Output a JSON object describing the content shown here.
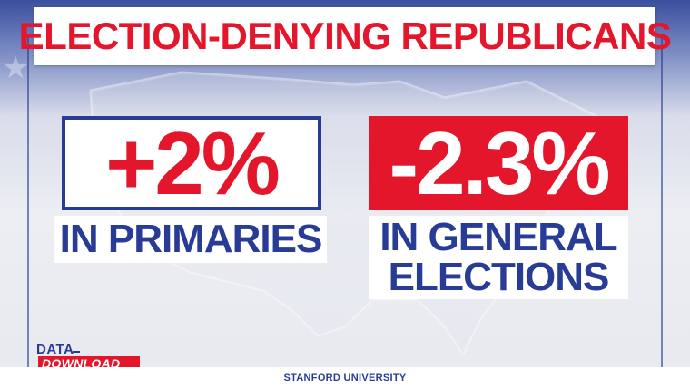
{
  "title": "ELECTION-DENYING REPUBLICANS",
  "stats": [
    {
      "value": "+2%",
      "label_lines": [
        "IN PRIMARIES"
      ]
    },
    {
      "value": "-2.3%",
      "label_lines": [
        "IN GENERAL",
        "ELECTIONS"
      ]
    }
  ],
  "logo": {
    "top": "DATA",
    "bottom": "DOWNLOAD"
  },
  "source": "STANFORD UNIVERSITY",
  "colors": {
    "red": "#e4162b",
    "blue": "#283c95",
    "white": "#ffffff"
  },
  "icons": {
    "background_map": "us-map-icon",
    "star": "star-icon"
  }
}
